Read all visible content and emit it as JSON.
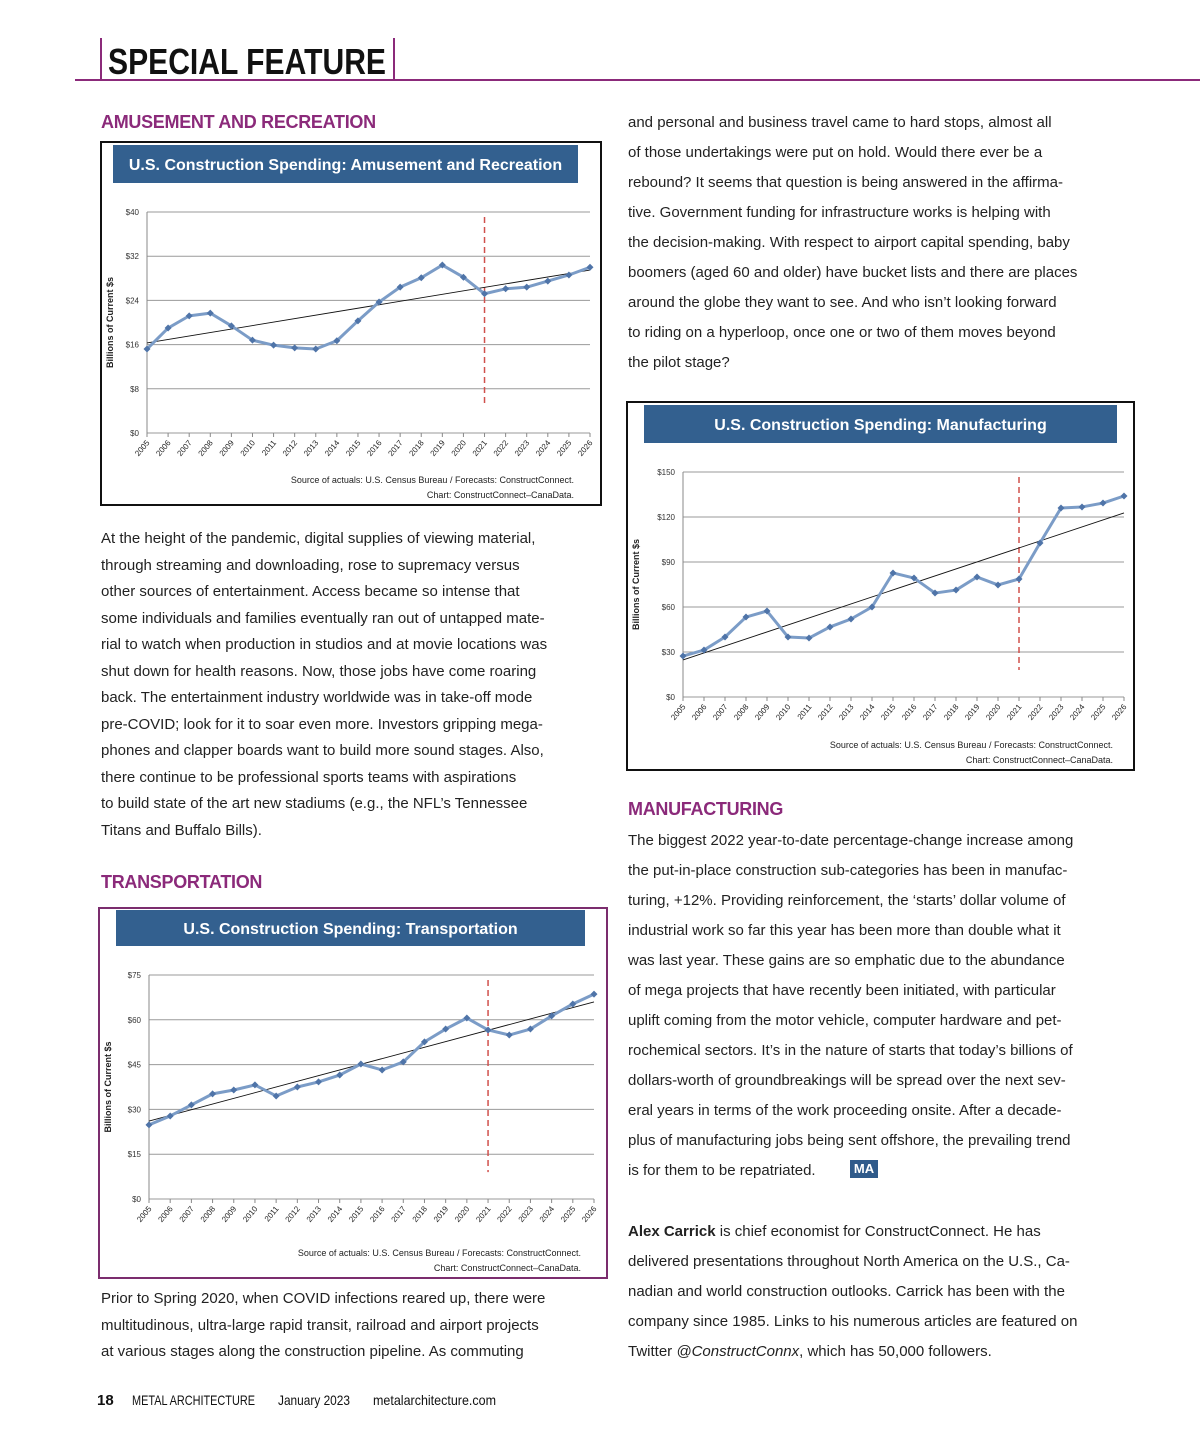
{
  "header": {
    "title": "SPECIAL FEATURE"
  },
  "amusement": {
    "heading": "AMUSEMENT AND RECREATION",
    "text": [
      "At the height of the pandemic, digital supplies of viewing material,",
      "through streaming and downloading, rose to supremacy versus",
      "other sources of entertainment. Access became so intense that",
      "some individuals and families eventually ran out of untapped mate-",
      "rial to watch when production in studios and at movie locations was",
      "shut down for health reasons. Now, those jobs have come roaring",
      "back. The entertainment industry worldwide was in take-off mode",
      "pre-COVID; look for it to soar even more. Investors gripping mega-",
      "phones and clapper boards want to build more sound stages. Also,",
      "there continue to be professional sports teams with aspirations",
      "to build state of the art new stadiums (e.g., the NFL’s Tennessee",
      "Titans and Buffalo Bills)."
    ]
  },
  "transportation": {
    "heading": "TRANSPORTATION",
    "text": [
      "Prior to Spring 2020, when COVID infections reared up, there were",
      "multitudinous, ultra-large rapid transit, railroad and airport projects",
      "at various stages along the construction pipeline. As commuting"
    ]
  },
  "continued_text": [
    "and personal and business travel came to hard stops, almost all",
    "of those undertakings were put on hold. Would there ever be a",
    "rebound? It seems that question is being answered in the affirma-",
    "tive. Government funding for infrastructure works is helping with",
    "the decision-making. With respect to airport capital spending, baby",
    "boomers (aged 60 and older) have bucket lists and there are places",
    "around the globe they want to see. And who isn’t looking forward",
    "to riding on a hyperloop, once one or two of them moves beyond",
    "the pilot stage?"
  ],
  "manufacturing": {
    "heading": "MANUFACTURING",
    "logo": "MA",
    "text": [
      "The biggest 2022 year-to-date percentage-change increase among",
      "the put-in-place construction sub-categories has been in manufac-",
      "turing, +12%. Providing reinforcement, the ‘starts’ dollar volume of",
      "industrial work so far this year has been more than double what it",
      "was last year. These gains are so emphatic due to the abundance",
      "of mega projects that have recently been initiated, with particular",
      "uplift coming from the motor vehicle, computer hardware and pet-",
      "rochemical sectors. It’s in the nature of starts that today’s billions of",
      "dollars-worth of groundbreakings will be spread over the next sev-",
      "eral years in terms of the work proceeding onsite. After a decade-",
      "plus of manufacturing jobs being sent offshore, the prevailing trend",
      "is for them to be repatriated."
    ]
  },
  "bio": {
    "name": "Alex Carrick",
    "first_line": "is chief economist for ConstructConnect. He has",
    "lines": [
      "delivered presentations throughout North America on the U.S., Ca-",
      "nadian and world construction outlooks. Carrick has been with the",
      "company since 1985. Links to his numerous articles are featured on"
    ],
    "last_start": "Twitter",
    "handle": "@ConstructConnx",
    "last_end": ", which has 50,000 followers."
  },
  "footer": {
    "page": "18",
    "magazine": "METAL ARCHITECTURE",
    "issue": "January 2023",
    "website": "metalarchitecture.com"
  },
  "chart_data": [
    {
      "type": "line",
      "title": "U.S. Construction Spending: Amusement and Recreation",
      "y_label": "Billions of Current $s",
      "source": [
        "Source of actuals: U.S. Census Bureau / Forecasts: ConstructConnect.",
        "Chart: ConstructConnect–CanaData."
      ],
      "categories": [
        "2005",
        "2006",
        "2007",
        "2008",
        "2009",
        "2010",
        "2011",
        "2012",
        "2013",
        "2014",
        "2015",
        "2016",
        "2017",
        "2018",
        "2019",
        "2020",
        "2021",
        "2022",
        "2023",
        "2024",
        "2025",
        "2026"
      ],
      "values": [
        15.2,
        19.0,
        21.2,
        21.7,
        19.4,
        16.8,
        15.9,
        15.4,
        15.2,
        16.7,
        20.3,
        23.7,
        26.4,
        28.1,
        30.4,
        28.2,
        25.2,
        26.1,
        26.4,
        27.5,
        28.6,
        30.0
      ],
      "trend": [
        16.3,
        29.5
      ],
      "forecast_from": "2021",
      "color": "#7b9cc7",
      "border_color": "#111111",
      "ylim": [
        0,
        40
      ],
      "yticks": [
        {
          "value": 0,
          "label": "$0"
        },
        {
          "value": 8,
          "label": "$8"
        },
        {
          "value": 16,
          "label": "$16"
        },
        {
          "value": 24,
          "label": "$24"
        },
        {
          "value": 32,
          "label": "$32"
        },
        {
          "value": 40,
          "label": "$40"
        }
      ],
      "grid": true
    },
    {
      "type": "line",
      "title": "U.S. Construction Spending: Manufacturing",
      "y_label": "Billions of Current $s",
      "source": [
        "Source of actuals: U.S. Census Bureau / Forecasts: ConstructConnect.",
        "Chart: ConstructConnect–CanaData."
      ],
      "categories": [
        "2005",
        "2006",
        "2007",
        "2008",
        "2009",
        "2010",
        "2011",
        "2012",
        "2013",
        "2014",
        "2015",
        "2016",
        "2017",
        "2018",
        "2019",
        "2020",
        "2021",
        "2022",
        "2023",
        "2024",
        "2025",
        "2026"
      ],
      "values": [
        27.3,
        31.3,
        40,
        53.3,
        57.3,
        40,
        39.3,
        46.7,
        52,
        60,
        82.7,
        79.3,
        69.3,
        71.3,
        80,
        74.7,
        78.7,
        102.7,
        126,
        126.7,
        129.3,
        134
      ],
      "trend": [
        24.7,
        122.7
      ],
      "forecast_from": "2021",
      "color": "#7b9cc7",
      "border_color": "#111111",
      "ylim": [
        0,
        150
      ],
      "yticks": [
        {
          "value": 0,
          "label": "$0"
        },
        {
          "value": 30,
          "label": "$30"
        },
        {
          "value": 60,
          "label": "$60"
        },
        {
          "value": 90,
          "label": "$90"
        },
        {
          "value": 120,
          "label": "$120"
        },
        {
          "value": 150,
          "label": "$150"
        }
      ],
      "grid": true
    },
    {
      "type": "line",
      "title": "U.S. Construction Spending: Transportation",
      "y_label": "Billions of Current $s",
      "source": [
        "Source of actuals: U.S. Census Bureau / Forecasts: ConstructConnect.",
        "Chart: ConstructConnect–CanaData."
      ],
      "categories": [
        "2005",
        "2006",
        "2007",
        "2008",
        "2009",
        "2010",
        "2011",
        "2012",
        "2013",
        "2014",
        "2015",
        "2016",
        "2017",
        "2018",
        "2019",
        "2020",
        "2021",
        "2022",
        "2023",
        "2024",
        "2025",
        "2026"
      ],
      "values": [
        24.8,
        27.8,
        31.5,
        35.2,
        36.5,
        38.2,
        34.5,
        37.5,
        39.2,
        41.5,
        45.2,
        43.2,
        45.9,
        52.6,
        56.9,
        60.6,
        56.6,
        54.9,
        56.9,
        61.3,
        65.3,
        68.6
      ],
      "trend": [
        26.1,
        66.0
      ],
      "forecast_from": "2021",
      "color": "#7b9cc7",
      "border_color": "#7b2d6e",
      "ylim": [
        0,
        75
      ],
      "yticks": [
        {
          "value": 0,
          "label": "$0"
        },
        {
          "value": 15,
          "label": "$15"
        },
        {
          "value": 30,
          "label": "$30"
        },
        {
          "value": 45,
          "label": "$45"
        },
        {
          "value": 60,
          "label": "$60"
        },
        {
          "value": 75,
          "label": "$75"
        }
      ],
      "grid": true
    }
  ]
}
